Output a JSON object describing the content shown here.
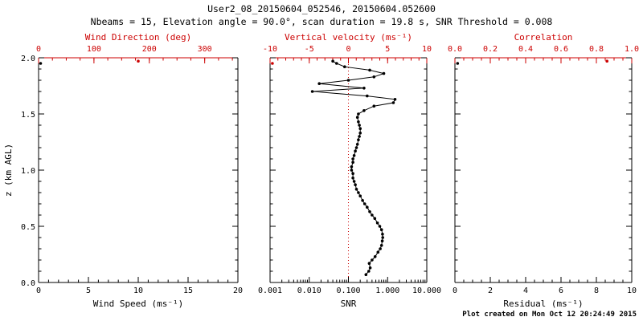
{
  "title": "User2_08_20150604_052546, 20150604.052600",
  "subtitle": "Nbeams = 15, Elevation angle = 90.0°, scan duration = 19.8 s, SNR Threshold = 0.008",
  "footer": "Plot created on Mon Oct 12 20:24:49 2015",
  "ylabel": "z (km AGL)",
  "colors": {
    "axis": "#000000",
    "secondary": "#cc0000",
    "background": "#ffffff"
  },
  "ylim": [
    0,
    2
  ],
  "yticks": {
    "values": [
      0.0,
      0.5,
      1.0,
      1.5,
      2.0
    ],
    "labels": [
      "0.0",
      "0.5",
      "1.0",
      "1.5",
      "2.0"
    ],
    "minor_step": 0.1
  },
  "chart_data": [
    {
      "type": "scatter",
      "xlabel": "Wind Speed (ms⁻¹)",
      "xlabel_top": "Wind Direction (deg)",
      "xscale": "linear",
      "xlim": [
        0,
        20
      ],
      "xticks": {
        "values": [
          0,
          5,
          10,
          15,
          20
        ],
        "labels": [
          "0",
          "5",
          "10",
          "15",
          "20"
        ]
      },
      "xminor": 1,
      "top": {
        "xlim": [
          0,
          360
        ],
        "xticks": {
          "values": [
            0,
            100,
            200,
            300
          ],
          "labels": [
            "0",
            "100",
            "200",
            "300"
          ]
        },
        "xminor": 25
      },
      "series": [
        {
          "name": "wind-speed",
          "axis": "bottom",
          "color": "#000000",
          "connect": false,
          "points": [
            [
              0.2,
              1.95
            ]
          ]
        },
        {
          "name": "wind-direction",
          "axis": "top",
          "color": "#cc0000",
          "connect": false,
          "points": [
            [
              180,
              1.97
            ]
          ]
        }
      ]
    },
    {
      "type": "scatter",
      "xlabel": "SNR",
      "xlabel_top": "Vertical velocity (ms⁻¹)",
      "xscale": "log",
      "xlim": [
        0.001,
        10
      ],
      "xticks": {
        "values": [
          0.001,
          0.01,
          0.1,
          1,
          10
        ],
        "labels": [
          "0.001",
          "0.010",
          "0.100",
          "1.000",
          "10.000"
        ]
      },
      "top": {
        "xlim": [
          -10,
          10
        ],
        "xticks": {
          "values": [
            -10,
            -5,
            0,
            5,
            10
          ],
          "labels": [
            "-10",
            "-5",
            "0",
            "5",
            "10"
          ]
        },
        "xminor": 1
      },
      "refline_top": 0,
      "series": [
        {
          "name": "snr-profile",
          "axis": "bottom",
          "color": "#000000",
          "connect": true,
          "points": [
            [
              0.28,
              0.07
            ],
            [
              0.33,
              0.1
            ],
            [
              0.36,
              0.13
            ],
            [
              0.34,
              0.17
            ],
            [
              0.4,
              0.2
            ],
            [
              0.48,
              0.23
            ],
            [
              0.57,
              0.27
            ],
            [
              0.65,
              0.3
            ],
            [
              0.7,
              0.33
            ],
            [
              0.73,
              0.37
            ],
            [
              0.75,
              0.4
            ],
            [
              0.74,
              0.43
            ],
            [
              0.7,
              0.47
            ],
            [
              0.63,
              0.5
            ],
            [
              0.55,
              0.53
            ],
            [
              0.47,
              0.57
            ],
            [
              0.4,
              0.6
            ],
            [
              0.35,
              0.63
            ],
            [
              0.3,
              0.67
            ],
            [
              0.26,
              0.7
            ],
            [
              0.23,
              0.73
            ],
            [
              0.2,
              0.77
            ],
            [
              0.18,
              0.8
            ],
            [
              0.16,
              0.83
            ],
            [
              0.15,
              0.87
            ],
            [
              0.14,
              0.9
            ],
            [
              0.13,
              0.93
            ],
            [
              0.13,
              0.97
            ],
            [
              0.12,
              1.0
            ],
            [
              0.12,
              1.03
            ],
            [
              0.13,
              1.07
            ],
            [
              0.13,
              1.1
            ],
            [
              0.14,
              1.13
            ],
            [
              0.15,
              1.17
            ],
            [
              0.16,
              1.2
            ],
            [
              0.17,
              1.23
            ],
            [
              0.18,
              1.27
            ],
            [
              0.19,
              1.3
            ],
            [
              0.2,
              1.33
            ],
            [
              0.2,
              1.37
            ],
            [
              0.19,
              1.4
            ],
            [
              0.18,
              1.43
            ],
            [
              0.17,
              1.47
            ],
            [
              0.18,
              1.5
            ],
            [
              0.25,
              1.53
            ],
            [
              0.45,
              1.57
            ],
            [
              1.4,
              1.6
            ],
            [
              1.55,
              1.63
            ],
            [
              0.3,
              1.66
            ],
            [
              0.012,
              1.7
            ],
            [
              0.25,
              1.73
            ],
            [
              0.018,
              1.77
            ],
            [
              0.1,
              1.8
            ],
            [
              0.45,
              1.83
            ],
            [
              0.8,
              1.86
            ],
            [
              0.35,
              1.89
            ],
            [
              0.08,
              1.92
            ],
            [
              0.05,
              1.95
            ],
            [
              0.04,
              1.97
            ]
          ]
        },
        {
          "name": "vertical-velocity",
          "axis": "top",
          "color": "#cc0000",
          "connect": false,
          "points": [
            [
              -9.7,
              1.95
            ]
          ]
        }
      ]
    },
    {
      "type": "scatter",
      "xlabel": "Residual (ms⁻¹)",
      "xlabel_top": "Correlation",
      "xscale": "linear",
      "xlim": [
        0,
        10
      ],
      "xticks": {
        "values": [
          0,
          2,
          4,
          6,
          8,
          10
        ],
        "labels": [
          "0",
          "2",
          "4",
          "6",
          "8",
          "10"
        ]
      },
      "xminor": 0.5,
      "top": {
        "xlim": [
          0,
          1
        ],
        "xticks": {
          "values": [
            0,
            0.2,
            0.4,
            0.6,
            0.8,
            1.0
          ],
          "labels": [
            "0.0",
            "0.2",
            "0.4",
            "0.6",
            "0.8",
            "1.0"
          ]
        },
        "xminor": 0.05
      },
      "series": [
        {
          "name": "residual",
          "axis": "bottom",
          "color": "#000000",
          "connect": false,
          "points": [
            [
              0.15,
              1.95
            ]
          ]
        },
        {
          "name": "correlation",
          "axis": "top",
          "color": "#cc0000",
          "connect": false,
          "points": [
            [
              0.86,
              1.97
            ]
          ]
        }
      ]
    }
  ]
}
